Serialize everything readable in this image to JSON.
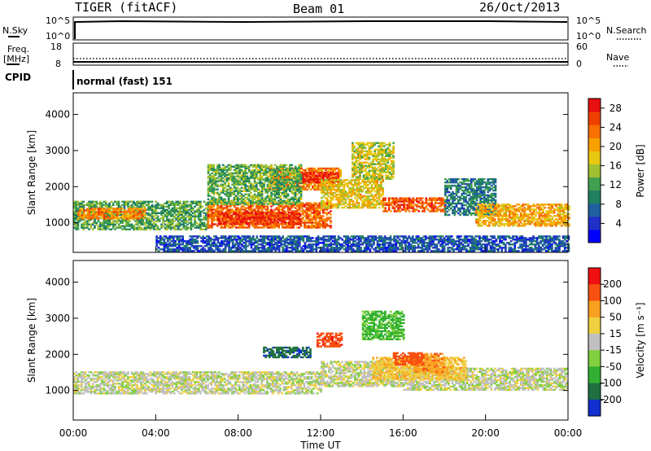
{
  "header": {
    "station": "TIGER (fitACF)",
    "beam": "Beam 01",
    "date": "26/Oct/2013"
  },
  "status_panels": {
    "nsky_label": "N.Sky",
    "nsky_ticks": [
      "10^5",
      "10^0"
    ],
    "nsearch_label": "N.Search",
    "nsearch_ticks": [
      "10^5",
      "10^0"
    ],
    "freq_label": "Freq.",
    "freq_unit": "[MHz]",
    "freq_ticks": [
      "18",
      "8"
    ],
    "nave_label": "Nave",
    "nave_ticks": [
      "60",
      "0"
    ],
    "cpid_label": "CPID",
    "cpid_value": "normal (fast) 151"
  },
  "chart_data": [
    {
      "type": "heatmap",
      "name": "power-panel",
      "ylabel": "Slant Range [km]",
      "yticks": [
        "4000",
        "3000",
        "2000",
        "1000"
      ],
      "ytick_values": [
        4000,
        3000,
        2000,
        1000
      ],
      "ylim": [
        180,
        4600
      ],
      "xlim": [
        0,
        24
      ],
      "colorbar": {
        "label": "Power [dB]",
        "ticks": [
          "28",
          "24",
          "20",
          "16",
          "12",
          "8",
          "4"
        ],
        "tick_values": [
          28,
          24,
          20,
          16,
          12,
          8,
          4
        ],
        "range": [
          0,
          30
        ],
        "colors": [
          "#0000ff",
          "#2030c8",
          "#2060a0",
          "#208060",
          "#40a050",
          "#a0c030",
          "#e8c810",
          "#f8a000",
          "#f87000",
          "#f04000",
          "#e81010"
        ]
      },
      "regions": [
        {
          "t": [
            0,
            6.5
          ],
          "r": [
            800,
            1600
          ],
          "v": 12
        },
        {
          "t": [
            0.2,
            3.5
          ],
          "r": [
            1100,
            1400
          ],
          "v": 22
        },
        {
          "t": [
            6.5,
            12.5
          ],
          "r": [
            850,
            1550
          ],
          "v": 24
        },
        {
          "t": [
            7,
            11
          ],
          "r": [
            950,
            1300
          ],
          "v": 27
        },
        {
          "t": [
            9.5,
            13
          ],
          "r": [
            1900,
            2500
          ],
          "v": 22
        },
        {
          "t": [
            11,
            12.8
          ],
          "r": [
            2100,
            2400
          ],
          "v": 28
        },
        {
          "t": [
            6.5,
            11
          ],
          "r": [
            1500,
            2600
          ],
          "v": 13
        },
        {
          "t": [
            12,
            15
          ],
          "r": [
            1400,
            2200
          ],
          "v": 18
        },
        {
          "t": [
            13.5,
            15.5
          ],
          "r": [
            2200,
            3200
          ],
          "v": 16
        },
        {
          "t": [
            15,
            18
          ],
          "r": [
            1300,
            1700
          ],
          "v": 25
        },
        {
          "t": [
            18,
            20.5
          ],
          "r": [
            1200,
            2200
          ],
          "v": 9
        },
        {
          "t": [
            19.5,
            24
          ],
          "r": [
            900,
            1500
          ],
          "v": 20
        },
        {
          "t": [
            4,
            24
          ],
          "r": [
            200,
            650
          ],
          "v": 6
        }
      ]
    },
    {
      "type": "heatmap",
      "name": "velocity-panel",
      "ylabel": "Slant Range [km]",
      "yticks": [
        "4000",
        "3000",
        "2000",
        "1000"
      ],
      "ytick_values": [
        4000,
        3000,
        2000,
        1000
      ],
      "ylim": [
        180,
        4600
      ],
      "xlim": [
        0,
        24
      ],
      "xticks": [
        "00:00",
        "04:00",
        "08:00",
        "12:00",
        "16:00",
        "20:00",
        "00:00"
      ],
      "xtick_values": [
        0,
        4,
        8,
        12,
        16,
        20,
        24
      ],
      "xlabel": "Time UT",
      "colorbar": {
        "label": "Velocity [m s⁻¹]",
        "ticks": [
          "200",
          "100",
          "50",
          "15",
          "-15",
          "-50",
          "-100",
          "-200"
        ],
        "tick_values": [
          200,
          100,
          50,
          15,
          -15,
          -50,
          -100,
          -200
        ],
        "colors": [
          "#f01010",
          "#f85010",
          "#f8a020",
          "#f0d040",
          "#c0c0c0",
          "#80d040",
          "#30b030",
          "#207040",
          "#1030d0"
        ]
      },
      "regions": [
        {
          "t": [
            0,
            12
          ],
          "r": [
            900,
            1500
          ],
          "v": 0
        },
        {
          "t": [
            12,
            16
          ],
          "r": [
            1100,
            1800
          ],
          "v": 0
        },
        {
          "t": [
            16,
            24
          ],
          "r": [
            1000,
            1600
          ],
          "v": 0
        },
        {
          "t": [
            9.2,
            11.5
          ],
          "r": [
            1900,
            2200
          ],
          "v": -180
        },
        {
          "t": [
            11.8,
            13
          ],
          "r": [
            2200,
            2600
          ],
          "v": 180
        },
        {
          "t": [
            14.5,
            19
          ],
          "r": [
            1300,
            1900
          ],
          "v": 45
        },
        {
          "t": [
            16.5,
            18
          ],
          "r": [
            1500,
            2000
          ],
          "v": 80
        },
        {
          "t": [
            14,
            16
          ],
          "r": [
            2400,
            3200
          ],
          "v": -60
        },
        {
          "t": [
            15.5,
            17
          ],
          "r": [
            1700,
            2050
          ],
          "v": 150
        }
      ]
    }
  ]
}
